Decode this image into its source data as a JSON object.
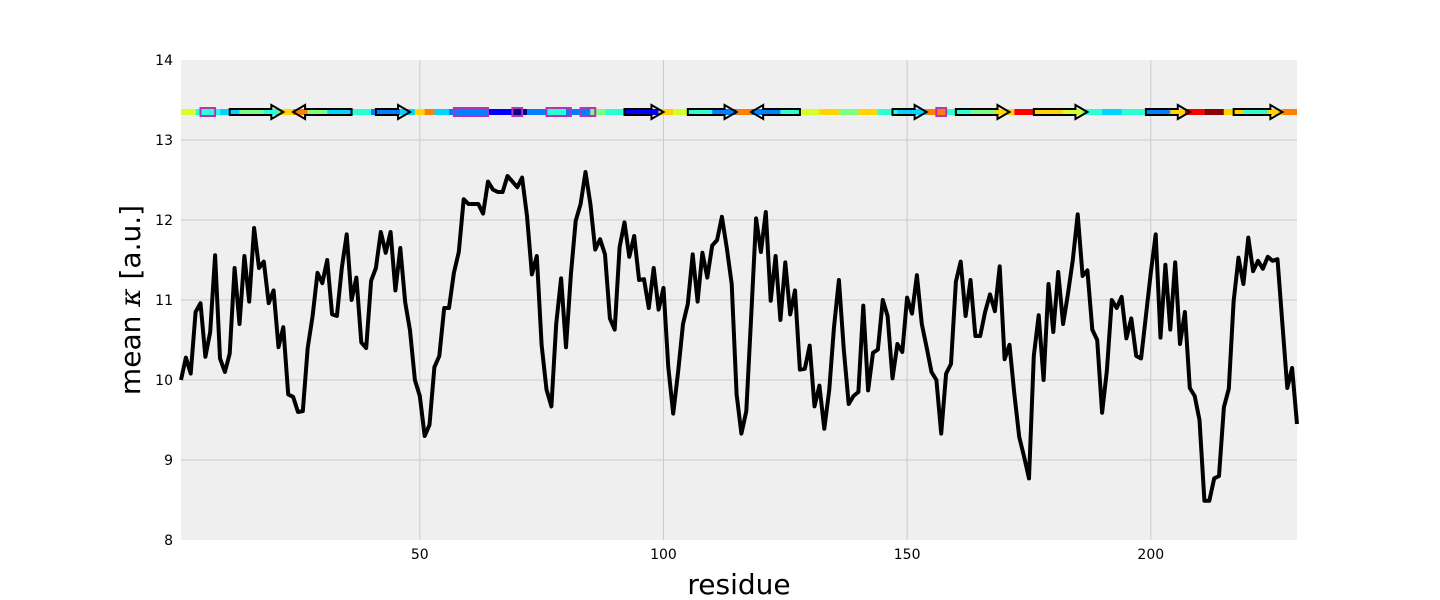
{
  "chart_data": {
    "type": "line",
    "xlabel": "residue",
    "ylabel_prefix": "mean ",
    "ylabel_symbol": "κ",
    "ylabel_suffix": " [a.u.]",
    "xlim": [
      1,
      230
    ],
    "ylim": [
      8,
      14
    ],
    "xticks": [
      50,
      100,
      150,
      200
    ],
    "yticks": [
      8,
      9,
      10,
      11,
      12,
      13,
      14
    ],
    "grid": true,
    "colors": {
      "background": "#efefef",
      "grid": "#cbcbcb",
      "line": "#000000",
      "helix": "#b832b8",
      "strand_outline": "#000000"
    },
    "series": [
      {
        "x": [
          1,
          2,
          3,
          4,
          5,
          6,
          7,
          8,
          9,
          10,
          11,
          12,
          13,
          14,
          15,
          16,
          17,
          18,
          19,
          20,
          21,
          22,
          23,
          24,
          25,
          26,
          27,
          28,
          29,
          30,
          31,
          32,
          33,
          34,
          35,
          36,
          37,
          38,
          39,
          40,
          41,
          42,
          43,
          44,
          45,
          46,
          47,
          48,
          49,
          50,
          51,
          52,
          53,
          54,
          55,
          56,
          57,
          58,
          59,
          60,
          61,
          62,
          63,
          64,
          65,
          66,
          67,
          68,
          69,
          70,
          71,
          72,
          73,
          74,
          75,
          76,
          77,
          78,
          79,
          80,
          81,
          82,
          83,
          84,
          85,
          86,
          87,
          88,
          89,
          90,
          91,
          92,
          93,
          94,
          95,
          96,
          97,
          98,
          99,
          100,
          101,
          102,
          103,
          104,
          105,
          106,
          107,
          108,
          109,
          110,
          111,
          112,
          113,
          114,
          115,
          116,
          117,
          118,
          119,
          120,
          121,
          122,
          123,
          124,
          125,
          126,
          127,
          128,
          129,
          130,
          131,
          132,
          133,
          134,
          135,
          136,
          137,
          138,
          139,
          140,
          141,
          142,
          143,
          144,
          145,
          146,
          147,
          148,
          149,
          150,
          151,
          152,
          153,
          154,
          155,
          156,
          157,
          158,
          159,
          160,
          161,
          162,
          163,
          164,
          165,
          166,
          167,
          168,
          169,
          170,
          171,
          172,
          173,
          174,
          175,
          176,
          177,
          178,
          179,
          180,
          181,
          182,
          183,
          184,
          185,
          186,
          187,
          188,
          189,
          190,
          191,
          192,
          193,
          194,
          195,
          196,
          197,
          198,
          199,
          200,
          201,
          202,
          203,
          204,
          205,
          206,
          207,
          208,
          209,
          210,
          211,
          212,
          213,
          214,
          215,
          216,
          217,
          218,
          219,
          220,
          221,
          222,
          223,
          224,
          225,
          226,
          227,
          228,
          229,
          230
        ],
        "values": [
          10.0,
          10.28,
          10.08,
          10.85,
          10.96,
          10.29,
          10.6,
          11.56,
          10.27,
          10.1,
          10.33,
          11.4,
          10.7,
          11.55,
          10.98,
          11.9,
          11.4,
          11.48,
          10.96,
          11.12,
          10.41,
          10.66,
          9.82,
          9.79,
          9.6,
          9.61,
          10.4,
          10.8,
          11.34,
          11.21,
          11.5,
          10.82,
          10.8,
          11.4,
          11.82,
          11.0,
          11.28,
          10.47,
          10.4,
          11.24,
          11.4,
          11.85,
          11.59,
          11.85,
          11.12,
          11.65,
          10.97,
          10.62,
          10.0,
          9.8,
          9.3,
          9.44,
          10.16,
          10.3,
          10.9,
          10.9,
          11.34,
          11.6,
          12.26,
          12.2,
          12.2,
          12.2,
          12.08,
          12.48,
          12.38,
          12.35,
          12.35,
          12.55,
          12.48,
          12.41,
          12.53,
          12.05,
          11.32,
          11.55,
          10.44,
          9.88,
          9.67,
          10.7,
          11.27,
          10.41,
          11.32,
          11.99,
          12.2,
          12.6,
          12.2,
          11.63,
          11.76,
          11.57,
          10.77,
          10.63,
          11.66,
          11.97,
          11.54,
          11.8,
          11.25,
          11.26,
          10.9,
          11.4,
          10.88,
          11.15,
          10.16,
          9.58,
          10.1,
          10.7,
          10.95,
          11.57,
          10.98,
          11.59,
          11.28,
          11.68,
          11.75,
          12.04,
          11.65,
          11.2,
          9.82,
          9.33,
          9.61,
          10.8,
          12.02,
          11.6,
          12.1,
          10.99,
          11.55,
          10.75,
          11.47,
          10.82,
          11.12,
          10.13,
          10.14,
          10.43,
          9.67,
          9.93,
          9.39,
          9.87,
          10.66,
          11.25,
          10.38,
          9.7,
          9.8,
          9.85,
          10.93,
          9.87,
          10.34,
          10.38,
          11.0,
          10.8,
          10.02,
          10.45,
          10.35,
          11.03,
          10.83,
          11.31,
          10.7,
          10.41,
          10.1,
          10.0,
          9.33,
          10.08,
          10.2,
          11.23,
          11.48,
          10.8,
          11.25,
          10.55,
          10.55,
          10.85,
          11.07,
          10.86,
          11.42,
          10.26,
          10.44,
          9.83,
          9.29,
          9.04,
          8.77,
          10.3,
          10.81,
          10.0,
          11.2,
          10.6,
          11.35,
          10.7,
          11.08,
          11.5,
          12.07,
          11.3,
          11.37,
          10.63,
          10.5,
          9.59,
          10.12,
          11.0,
          10.9,
          11.04,
          10.52,
          10.77,
          10.3,
          10.27,
          10.8,
          11.34,
          11.82,
          10.53,
          11.44,
          10.63,
          11.47,
          10.45,
          10.85,
          9.9,
          9.8,
          9.5,
          8.49,
          8.49,
          8.77,
          8.8,
          9.66,
          9.89,
          10.98,
          11.53,
          11.2,
          11.78,
          11.36,
          11.49,
          11.39,
          11.54,
          11.49,
          11.51,
          10.7,
          9.9,
          10.15,
          9.45
        ]
      }
    ],
    "secondary_structure_track": {
      "y": 13.35,
      "gradient_colors": [
        "#ff0000",
        "#ff7f00",
        "#ffd400",
        "#d4ff2a",
        "#7fff7f",
        "#2affd4",
        "#00d4ff",
        "#007fff",
        "#0000ff",
        "#00008b"
      ],
      "color_segments": [
        {
          "start": 1,
          "end": 4,
          "color": "#d4ff2a"
        },
        {
          "start": 4,
          "end": 9,
          "color": "#2affd4"
        },
        {
          "start": 9,
          "end": 13,
          "color": "#00d4ff"
        },
        {
          "start": 13,
          "end": 18,
          "color": "#7fff7f"
        },
        {
          "start": 18,
          "end": 21,
          "color": "#2affd4"
        },
        {
          "start": 21,
          "end": 24,
          "color": "#ffd400"
        },
        {
          "start": 24,
          "end": 27,
          "color": "#ff7f00"
        },
        {
          "start": 27,
          "end": 31,
          "color": "#7fff7f"
        },
        {
          "start": 31,
          "end": 36,
          "color": "#00d4ff"
        },
        {
          "start": 36,
          "end": 40,
          "color": "#2affd4"
        },
        {
          "start": 40,
          "end": 46,
          "color": "#007fff"
        },
        {
          "start": 46,
          "end": 49,
          "color": "#00d4ff"
        },
        {
          "start": 49,
          "end": 51,
          "color": "#ffd400"
        },
        {
          "start": 51,
          "end": 53,
          "color": "#ff7f00"
        },
        {
          "start": 53,
          "end": 56,
          "color": "#00d4ff"
        },
        {
          "start": 56,
          "end": 64,
          "color": "#007fff"
        },
        {
          "start": 64,
          "end": 69,
          "color": "#0000ff"
        },
        {
          "start": 69,
          "end": 72,
          "color": "#00008b"
        },
        {
          "start": 72,
          "end": 76,
          "color": "#007fff"
        },
        {
          "start": 76,
          "end": 80,
          "color": "#2affd4"
        },
        {
          "start": 80,
          "end": 85,
          "color": "#007fff"
        },
        {
          "start": 85,
          "end": 88,
          "color": "#7fff7f"
        },
        {
          "start": 88,
          "end": 92,
          "color": "#2affd4"
        },
        {
          "start": 92,
          "end": 99,
          "color": "#0000ff"
        },
        {
          "start": 99,
          "end": 102,
          "color": "#ffd400"
        },
        {
          "start": 102,
          "end": 105,
          "color": "#d4ff2a"
        },
        {
          "start": 105,
          "end": 110,
          "color": "#2affd4"
        },
        {
          "start": 110,
          "end": 115,
          "color": "#007fff"
        },
        {
          "start": 115,
          "end": 118,
          "color": "#ff7f00"
        },
        {
          "start": 118,
          "end": 124,
          "color": "#007fff"
        },
        {
          "start": 124,
          "end": 128,
          "color": "#2affd4"
        },
        {
          "start": 128,
          "end": 132,
          "color": "#d4ff2a"
        },
        {
          "start": 132,
          "end": 136,
          "color": "#ffd400"
        },
        {
          "start": 136,
          "end": 140,
          "color": "#7fff7f"
        },
        {
          "start": 140,
          "end": 144,
          "color": "#ffd400"
        },
        {
          "start": 144,
          "end": 148,
          "color": "#2affd4"
        },
        {
          "start": 148,
          "end": 154,
          "color": "#00d4ff"
        },
        {
          "start": 154,
          "end": 158,
          "color": "#ff7f00"
        },
        {
          "start": 158,
          "end": 163,
          "color": "#2affd4"
        },
        {
          "start": 163,
          "end": 168,
          "color": "#7fff7f"
        },
        {
          "start": 168,
          "end": 172,
          "color": "#ffd400"
        },
        {
          "start": 172,
          "end": 176,
          "color": "#ff0000"
        },
        {
          "start": 176,
          "end": 182,
          "color": "#ffd400"
        },
        {
          "start": 182,
          "end": 186,
          "color": "#d4ff2a"
        },
        {
          "start": 186,
          "end": 190,
          "color": "#2affd4"
        },
        {
          "start": 190,
          "end": 194,
          "color": "#00d4ff"
        },
        {
          "start": 194,
          "end": 199,
          "color": "#2affd4"
        },
        {
          "start": 199,
          "end": 204,
          "color": "#007fff"
        },
        {
          "start": 204,
          "end": 207,
          "color": "#ffd400"
        },
        {
          "start": 207,
          "end": 211,
          "color": "#ff0000"
        },
        {
          "start": 211,
          "end": 215,
          "color": "#8b0000"
        },
        {
          "start": 215,
          "end": 219,
          "color": "#ffd400"
        },
        {
          "start": 219,
          "end": 224,
          "color": "#2affd4"
        },
        {
          "start": 224,
          "end": 227,
          "color": "#ffd400"
        },
        {
          "start": 227,
          "end": 230,
          "color": "#ff7f00"
        }
      ],
      "helices": [
        {
          "start": 5,
          "end": 8
        },
        {
          "start": 57,
          "end": 64
        },
        {
          "start": 69,
          "end": 71
        },
        {
          "start": 76,
          "end": 81
        },
        {
          "start": 83,
          "end": 86
        },
        {
          "start": 156,
          "end": 158
        }
      ],
      "strands": [
        {
          "start": 11,
          "end": 22,
          "dir": "right"
        },
        {
          "start": 24,
          "end": 36,
          "dir": "left"
        },
        {
          "start": 41,
          "end": 48,
          "dir": "right"
        },
        {
          "start": 92,
          "end": 100,
          "dir": "right"
        },
        {
          "start": 105,
          "end": 115,
          "dir": "right"
        },
        {
          "start": 118,
          "end": 128,
          "dir": "left"
        },
        {
          "start": 147,
          "end": 154,
          "dir": "right"
        },
        {
          "start": 160,
          "end": 171,
          "dir": "right"
        },
        {
          "start": 176,
          "end": 187,
          "dir": "right"
        },
        {
          "start": 199,
          "end": 208,
          "dir": "right"
        },
        {
          "start": 217,
          "end": 227,
          "dir": "right"
        }
      ]
    }
  }
}
